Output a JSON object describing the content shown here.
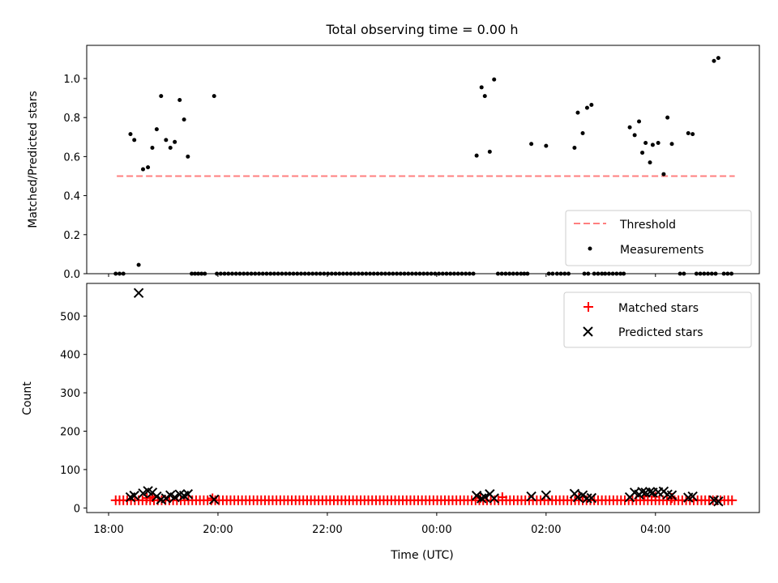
{
  "chart_data": [
    {
      "type": "scatter",
      "title": "Total observing time = 0.00 h",
      "ylabel": "Matched/Predicted stars",
      "ylim": [
        0,
        1.17
      ],
      "yticks": [
        0.0,
        0.2,
        0.4,
        0.6,
        0.8,
        1.0
      ],
      "ytick_labels": [
        "0.0",
        "0.2",
        "0.4",
        "0.6",
        "0.8",
        "1.0"
      ],
      "xlim_hours": [
        17.6,
        29.9
      ],
      "legend_position": "lower right",
      "threshold": {
        "name": "Threshold",
        "value": 0.5,
        "x_start": 18.15,
        "x_end": 29.45,
        "color": "#ff7f7f",
        "style": "dashed"
      },
      "measurements": {
        "name": "Measurements",
        "color": "#000000",
        "points": [
          [
            18.13,
            0
          ],
          [
            18.2,
            0
          ],
          [
            18.27,
            0
          ],
          [
            18.4,
            0.715
          ],
          [
            18.47,
            0.685
          ],
          [
            18.55,
            0.045
          ],
          [
            18.63,
            0.535
          ],
          [
            18.72,
            0.545
          ],
          [
            18.8,
            0.645
          ],
          [
            18.88,
            0.74
          ],
          [
            18.96,
            0.91
          ],
          [
            19.05,
            0.685
          ],
          [
            19.13,
            0.645
          ],
          [
            19.21,
            0.675
          ],
          [
            19.3,
            0.89
          ],
          [
            19.38,
            0.79
          ],
          [
            19.45,
            0.6
          ],
          [
            19.93,
            0.91
          ],
          [
            19.52,
            0
          ],
          [
            19.58,
            0
          ],
          [
            19.64,
            0
          ],
          [
            19.7,
            0
          ],
          [
            19.76,
            0
          ],
          [
            19.98,
            0
          ],
          [
            20.05,
            0
          ],
          [
            20.12,
            0
          ],
          [
            20.19,
            0
          ],
          [
            20.26,
            0
          ],
          [
            20.33,
            0
          ],
          [
            20.4,
            0
          ],
          [
            20.47,
            0
          ],
          [
            20.54,
            0
          ],
          [
            20.61,
            0
          ],
          [
            20.68,
            0
          ],
          [
            20.75,
            0
          ],
          [
            20.82,
            0
          ],
          [
            20.89,
            0
          ],
          [
            20.96,
            0
          ],
          [
            21.03,
            0
          ],
          [
            21.1,
            0
          ],
          [
            21.17,
            0
          ],
          [
            21.24,
            0
          ],
          [
            21.31,
            0
          ],
          [
            21.38,
            0
          ],
          [
            21.45,
            0
          ],
          [
            21.52,
            0
          ],
          [
            21.59,
            0
          ],
          [
            21.66,
            0
          ],
          [
            21.73,
            0
          ],
          [
            21.8,
            0
          ],
          [
            21.87,
            0
          ],
          [
            21.94,
            0
          ],
          [
            22.01,
            0
          ],
          [
            22.08,
            0
          ],
          [
            22.15,
            0
          ],
          [
            22.22,
            0
          ],
          [
            22.29,
            0
          ],
          [
            22.36,
            0
          ],
          [
            22.43,
            0
          ],
          [
            22.5,
            0
          ],
          [
            22.57,
            0
          ],
          [
            22.64,
            0
          ],
          [
            22.71,
            0
          ],
          [
            22.78,
            0
          ],
          [
            22.85,
            0
          ],
          [
            22.92,
            0
          ],
          [
            22.99,
            0
          ],
          [
            23.06,
            0
          ],
          [
            23.13,
            0
          ],
          [
            23.2,
            0
          ],
          [
            23.27,
            0
          ],
          [
            23.34,
            0
          ],
          [
            23.41,
            0
          ],
          [
            23.48,
            0
          ],
          [
            23.55,
            0
          ],
          [
            23.62,
            0
          ],
          [
            23.69,
            0
          ],
          [
            23.76,
            0
          ],
          [
            23.83,
            0
          ],
          [
            23.9,
            0
          ],
          [
            23.97,
            0
          ],
          [
            24.04,
            0
          ],
          [
            24.11,
            0
          ],
          [
            24.18,
            0
          ],
          [
            24.25,
            0
          ],
          [
            24.32,
            0
          ],
          [
            24.39,
            0
          ],
          [
            24.46,
            0
          ],
          [
            24.53,
            0
          ],
          [
            24.6,
            0
          ],
          [
            24.67,
            0
          ],
          [
            24.73,
            0.605
          ],
          [
            24.82,
            0.955
          ],
          [
            24.88,
            0.91
          ],
          [
            24.97,
            0.625
          ],
          [
            25.05,
            0.995
          ],
          [
            25.12,
            0
          ],
          [
            25.19,
            0
          ],
          [
            25.26,
            0
          ],
          [
            25.33,
            0
          ],
          [
            25.4,
            0
          ],
          [
            25.47,
            0
          ],
          [
            25.54,
            0
          ],
          [
            25.6,
            0
          ],
          [
            25.66,
            0
          ],
          [
            25.73,
            0.665
          ],
          [
            26.0,
            0.655
          ],
          [
            26.05,
            0
          ],
          [
            26.12,
            0
          ],
          [
            26.2,
            0
          ],
          [
            26.27,
            0
          ],
          [
            26.34,
            0
          ],
          [
            26.41,
            0
          ],
          [
            26.52,
            0.645
          ],
          [
            26.58,
            0.825
          ],
          [
            26.67,
            0.72
          ],
          [
            26.75,
            0.85
          ],
          [
            26.83,
            0.865
          ],
          [
            26.7,
            0
          ],
          [
            26.77,
            0
          ],
          [
            26.88,
            0
          ],
          [
            26.95,
            0
          ],
          [
            27.02,
            0
          ],
          [
            27.08,
            0
          ],
          [
            27.15,
            0
          ],
          [
            27.22,
            0
          ],
          [
            27.29,
            0
          ],
          [
            27.36,
            0
          ],
          [
            27.42,
            0
          ],
          [
            27.53,
            0.75
          ],
          [
            27.62,
            0.71
          ],
          [
            27.7,
            0.78
          ],
          [
            27.76,
            0.62
          ],
          [
            27.82,
            0.67
          ],
          [
            27.9,
            0.57
          ],
          [
            27.95,
            0.66
          ],
          [
            28.05,
            0.67
          ],
          [
            28.15,
            0.51
          ],
          [
            28.22,
            0.8
          ],
          [
            28.3,
            0.665
          ],
          [
            28.6,
            0.72
          ],
          [
            28.68,
            0.715
          ],
          [
            28.45,
            0
          ],
          [
            28.52,
            0
          ],
          [
            28.75,
            0
          ],
          [
            28.82,
            0
          ],
          [
            28.89,
            0
          ],
          [
            28.96,
            0
          ],
          [
            29.03,
            0
          ],
          [
            29.1,
            0
          ],
          [
            29.25,
            0
          ],
          [
            29.32,
            0
          ],
          [
            29.39,
            0
          ],
          [
            29.07,
            1.09
          ],
          [
            29.15,
            1.105
          ]
        ]
      }
    },
    {
      "type": "scatter",
      "xlabel": "Time (UTC)",
      "ylabel": "Count",
      "ylim": [
        -12,
        585
      ],
      "yticks": [
        0,
        100,
        200,
        300,
        400,
        500
      ],
      "ytick_labels": [
        "0",
        "100",
        "200",
        "300",
        "400",
        "500"
      ],
      "xticks_hours": [
        18,
        20,
        22,
        24,
        26,
        28
      ],
      "xtick_labels": [
        "18:00",
        "20:00",
        "22:00",
        "00:00",
        "02:00",
        "04:00"
      ],
      "xlim_hours": [
        17.6,
        29.9
      ],
      "legend_position": "upper right",
      "matched": {
        "name": "Matched stars",
        "color": "#ff0000",
        "marker": "plus",
        "x_start": 18.13,
        "x_end": 29.45,
        "x_step": 0.07,
        "typical_value": 20,
        "points": [
          [
            18.7,
            26
          ],
          [
            18.8,
            28
          ],
          [
            19.9,
            25
          ],
          [
            24.8,
            26
          ],
          [
            25.2,
            28
          ],
          [
            26.6,
            27
          ],
          [
            27.8,
            30
          ],
          [
            28.0,
            29
          ],
          [
            28.3,
            26
          ]
        ]
      },
      "predicted": {
        "name": "Predicted stars",
        "color": "#000000",
        "marker": "x",
        "points": [
          [
            18.4,
            28
          ],
          [
            18.47,
            32
          ],
          [
            18.55,
            560
          ],
          [
            18.63,
            38
          ],
          [
            18.72,
            44
          ],
          [
            18.8,
            40
          ],
          [
            18.88,
            30
          ],
          [
            18.96,
            22
          ],
          [
            19.05,
            25
          ],
          [
            19.13,
            33
          ],
          [
            19.21,
            28
          ],
          [
            19.3,
            35
          ],
          [
            19.38,
            32
          ],
          [
            19.45,
            36
          ],
          [
            19.93,
            22
          ],
          [
            24.73,
            32
          ],
          [
            24.82,
            25
          ],
          [
            24.88,
            28
          ],
          [
            24.97,
            36
          ],
          [
            25.05,
            25
          ],
          [
            25.73,
            30
          ],
          [
            26.0,
            33
          ],
          [
            26.52,
            37
          ],
          [
            26.58,
            28
          ],
          [
            26.67,
            33
          ],
          [
            26.75,
            25
          ],
          [
            26.83,
            26
          ],
          [
            27.53,
            28
          ],
          [
            27.62,
            40
          ],
          [
            27.7,
            35
          ],
          [
            27.76,
            42
          ],
          [
            27.82,
            40
          ],
          [
            27.9,
            42
          ],
          [
            27.95,
            40
          ],
          [
            28.05,
            41
          ],
          [
            28.15,
            43
          ],
          [
            28.22,
            35
          ],
          [
            28.3,
            33
          ],
          [
            28.6,
            27
          ],
          [
            28.68,
            30
          ],
          [
            29.07,
            20
          ],
          [
            29.15,
            17
          ]
        ]
      }
    }
  ]
}
